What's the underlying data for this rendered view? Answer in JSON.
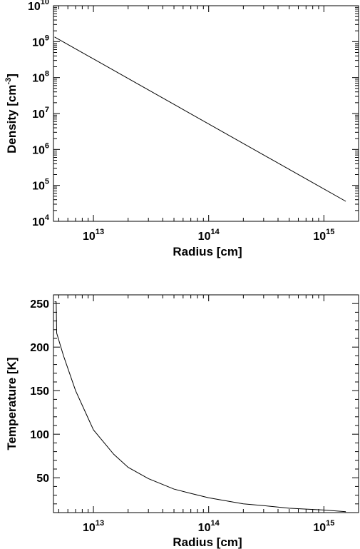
{
  "chart_data": [
    {
      "type": "line",
      "xlabel": "Radius [cm]",
      "ylabel_main": "Density [cm",
      "ylabel_exp": "-3",
      "ylabel_close": "]",
      "xscale": "log",
      "yscale": "log",
      "xlim": [
        4500000000000.0,
        2000000000000000.0
      ],
      "ylim": [
        10000.0,
        10000000000.0
      ],
      "x_ticks": [
        {
          "value": 10000000000000.0,
          "base": "10",
          "exp": "13"
        },
        {
          "value": 100000000000000.0,
          "base": "10",
          "exp": "14"
        },
        {
          "value": 1000000000000000.0,
          "base": "10",
          "exp": "15"
        }
      ],
      "y_ticks": [
        {
          "value": 10000.0,
          "base": "10",
          "exp": "4"
        },
        {
          "value": 100000.0,
          "base": "10",
          "exp": "5"
        },
        {
          "value": 1000000.0,
          "base": "10",
          "exp": "6"
        },
        {
          "value": 10000000.0,
          "base": "10",
          "exp": "7"
        },
        {
          "value": 100000000.0,
          "base": "10",
          "exp": "8"
        },
        {
          "value": 1000000000.0,
          "base": "10",
          "exp": "9"
        },
        {
          "value": 10000000000.0,
          "base": "10",
          "exp": "10"
        }
      ],
      "series": [
        {
          "x": [
            4600000000000.0,
            1550000000000000.0
          ],
          "y": [
            1350000000.0,
            36000.0
          ]
        }
      ],
      "grid": false
    },
    {
      "type": "line",
      "xlabel": "Radius [cm]",
      "ylabel": "Temperature [K]",
      "xscale": "log",
      "yscale": "linear",
      "xlim": [
        4500000000000.0,
        2000000000000000.0
      ],
      "ylim": [
        10,
        260
      ],
      "x_ticks": [
        {
          "value": 10000000000000.0,
          "base": "10",
          "exp": "13"
        },
        {
          "value": 100000000000000.0,
          "base": "10",
          "exp": "14"
        },
        {
          "value": 1000000000000000.0,
          "base": "10",
          "exp": "15"
        }
      ],
      "y_ticks": [
        {
          "value": 50,
          "label": "50"
        },
        {
          "value": 100,
          "label": "100"
        },
        {
          "value": 150,
          "label": "150"
        },
        {
          "value": 200,
          "label": "200"
        },
        {
          "value": 250,
          "label": "250"
        }
      ],
      "series": [
        {
          "x": [
            4600000000000.0,
            4750000000000.0,
            4800000000000.0,
            5500000000000.0,
            7000000000000.0,
            10000000000000.0,
            15000000000000.0,
            20000000000000.0,
            30000000000000.0,
            50000000000000.0,
            70000000000000.0,
            100000000000000.0,
            200000000000000.0,
            300000000000000.0,
            500000000000000.0,
            700000000000000.0,
            1000000000000000.0,
            1550000000000000.0
          ],
          "y": [
            252,
            252,
            216,
            190,
            150,
            105,
            77,
            62,
            49,
            37,
            32,
            27,
            20,
            18,
            15,
            14,
            13,
            11
          ]
        }
      ],
      "grid": false
    }
  ]
}
